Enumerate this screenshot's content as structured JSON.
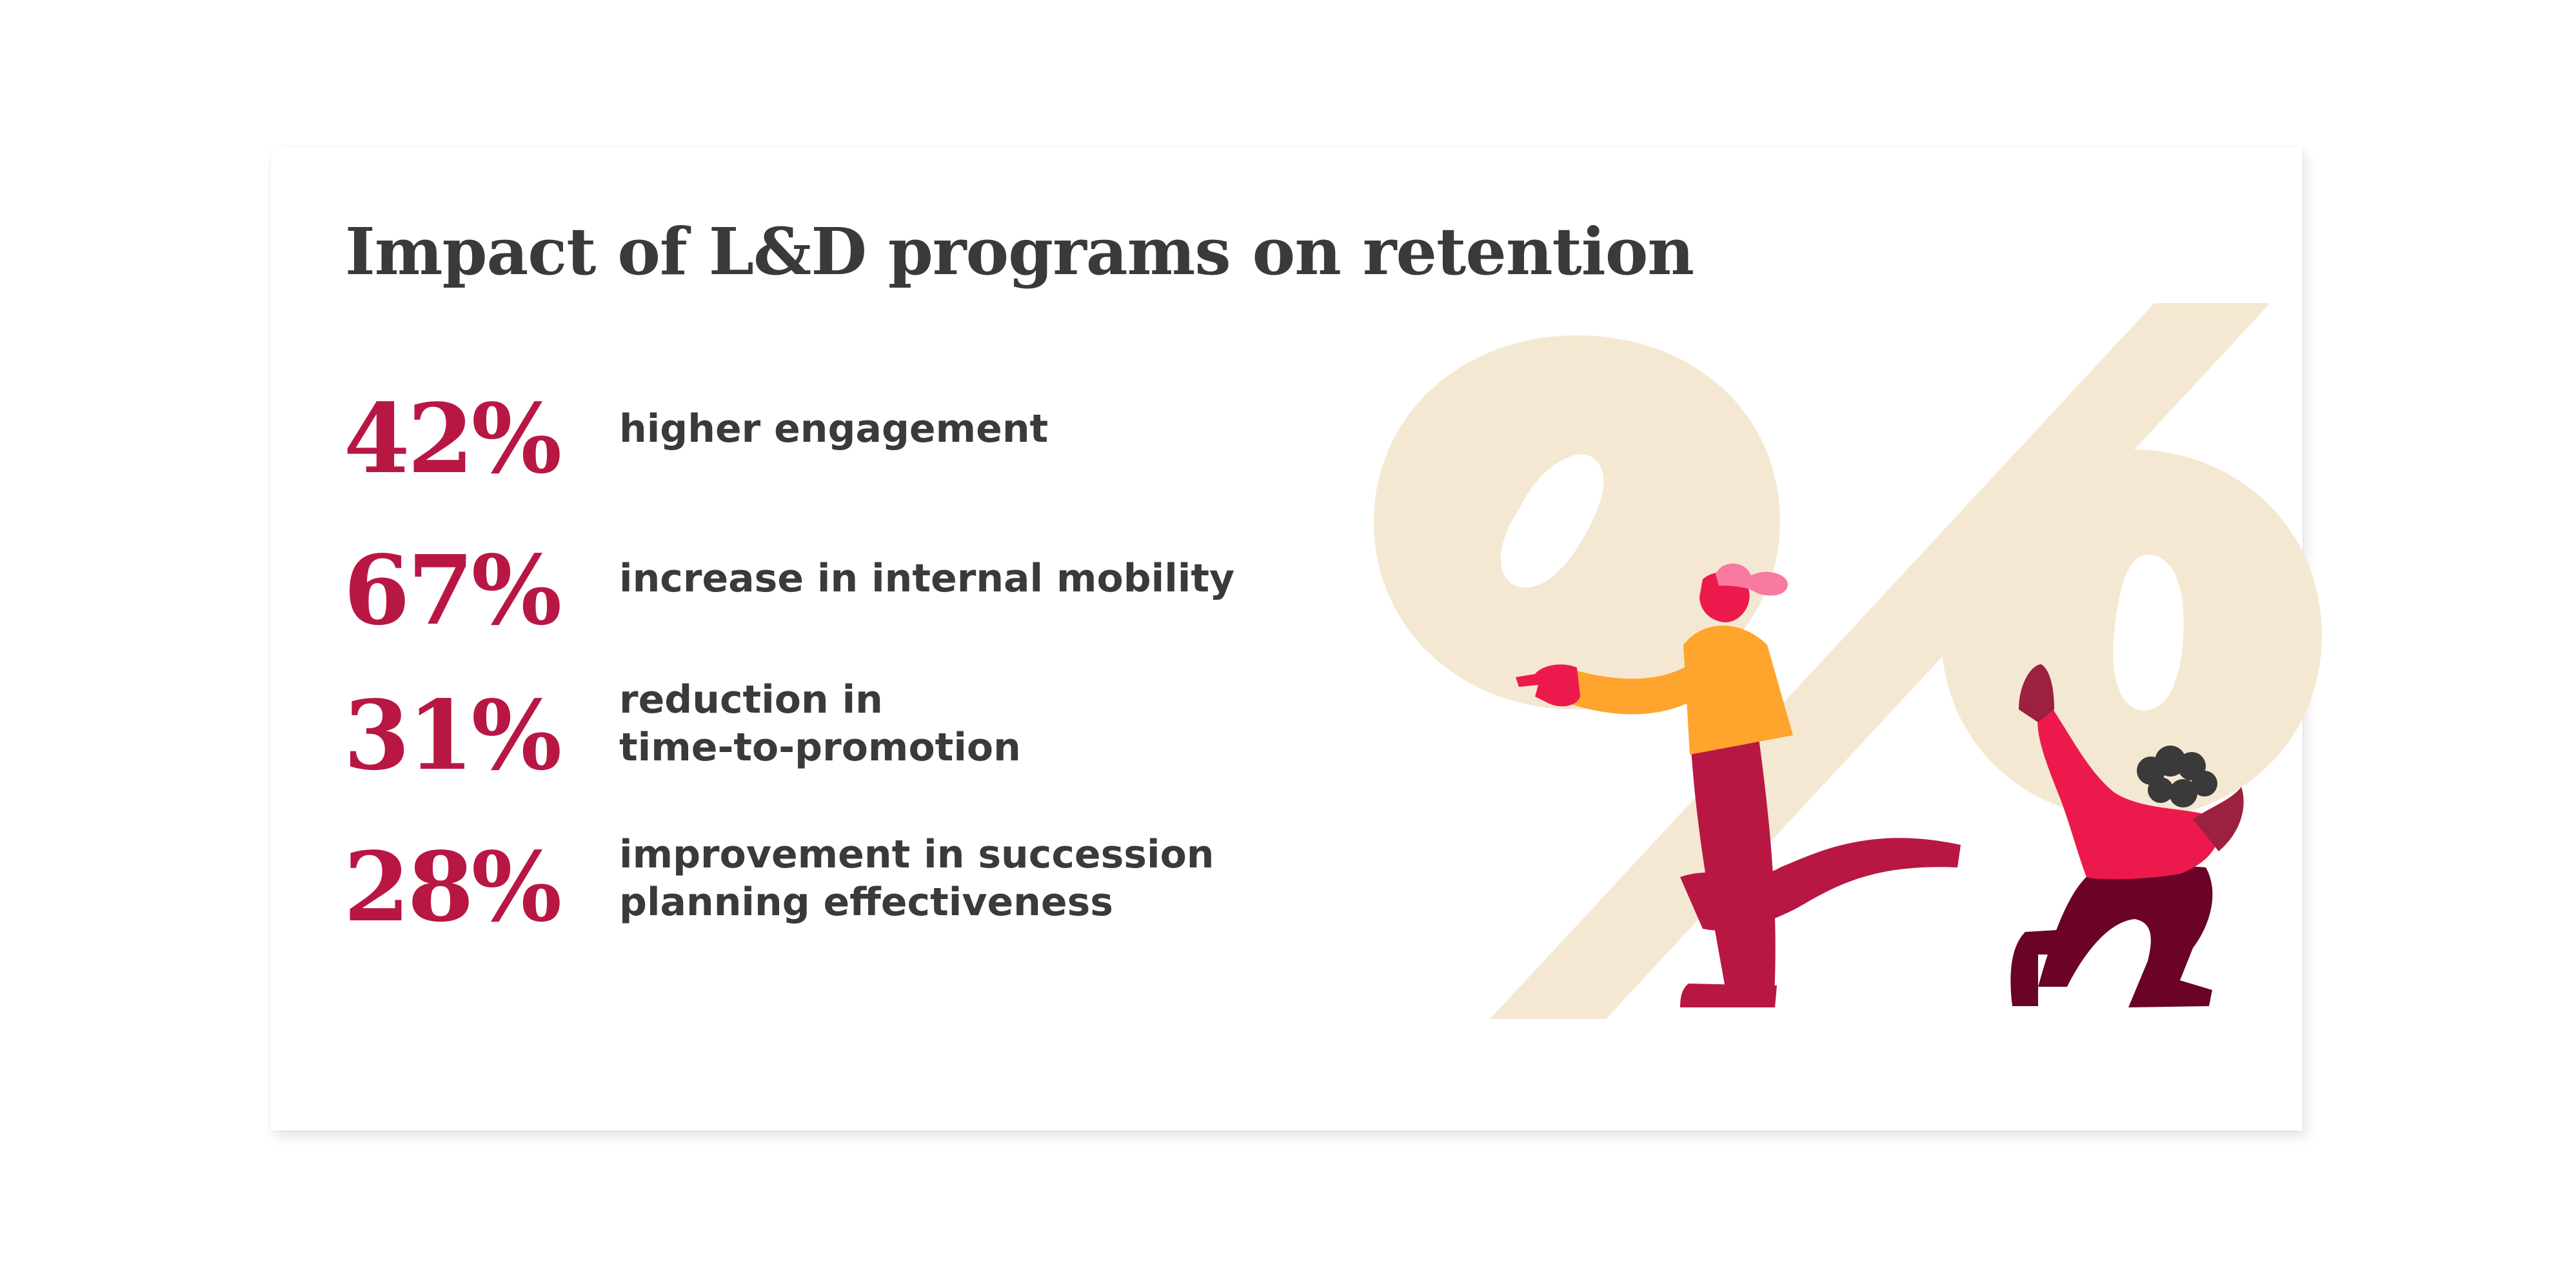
{
  "title": "Impact of L&D programs on retention",
  "stats": [
    {
      "value": "42%",
      "label": "higher engagement"
    },
    {
      "value": "67%",
      "label": "increase in internal mobility"
    },
    {
      "value": "31%",
      "label": "reduction in\ntime-to-promotion"
    },
    {
      "value": "28%",
      "label": "improvement in succession planning effectiveness"
    }
  ],
  "illustration": {
    "icon": "percent-sign-with-people-illustration",
    "colors": {
      "percent": "#f5e8d2",
      "accent": "#b81744",
      "orange": "#ffa42c",
      "red": "#ec1a4c",
      "dark": "#6a0327",
      "hair": "#3a3a3a"
    }
  }
}
